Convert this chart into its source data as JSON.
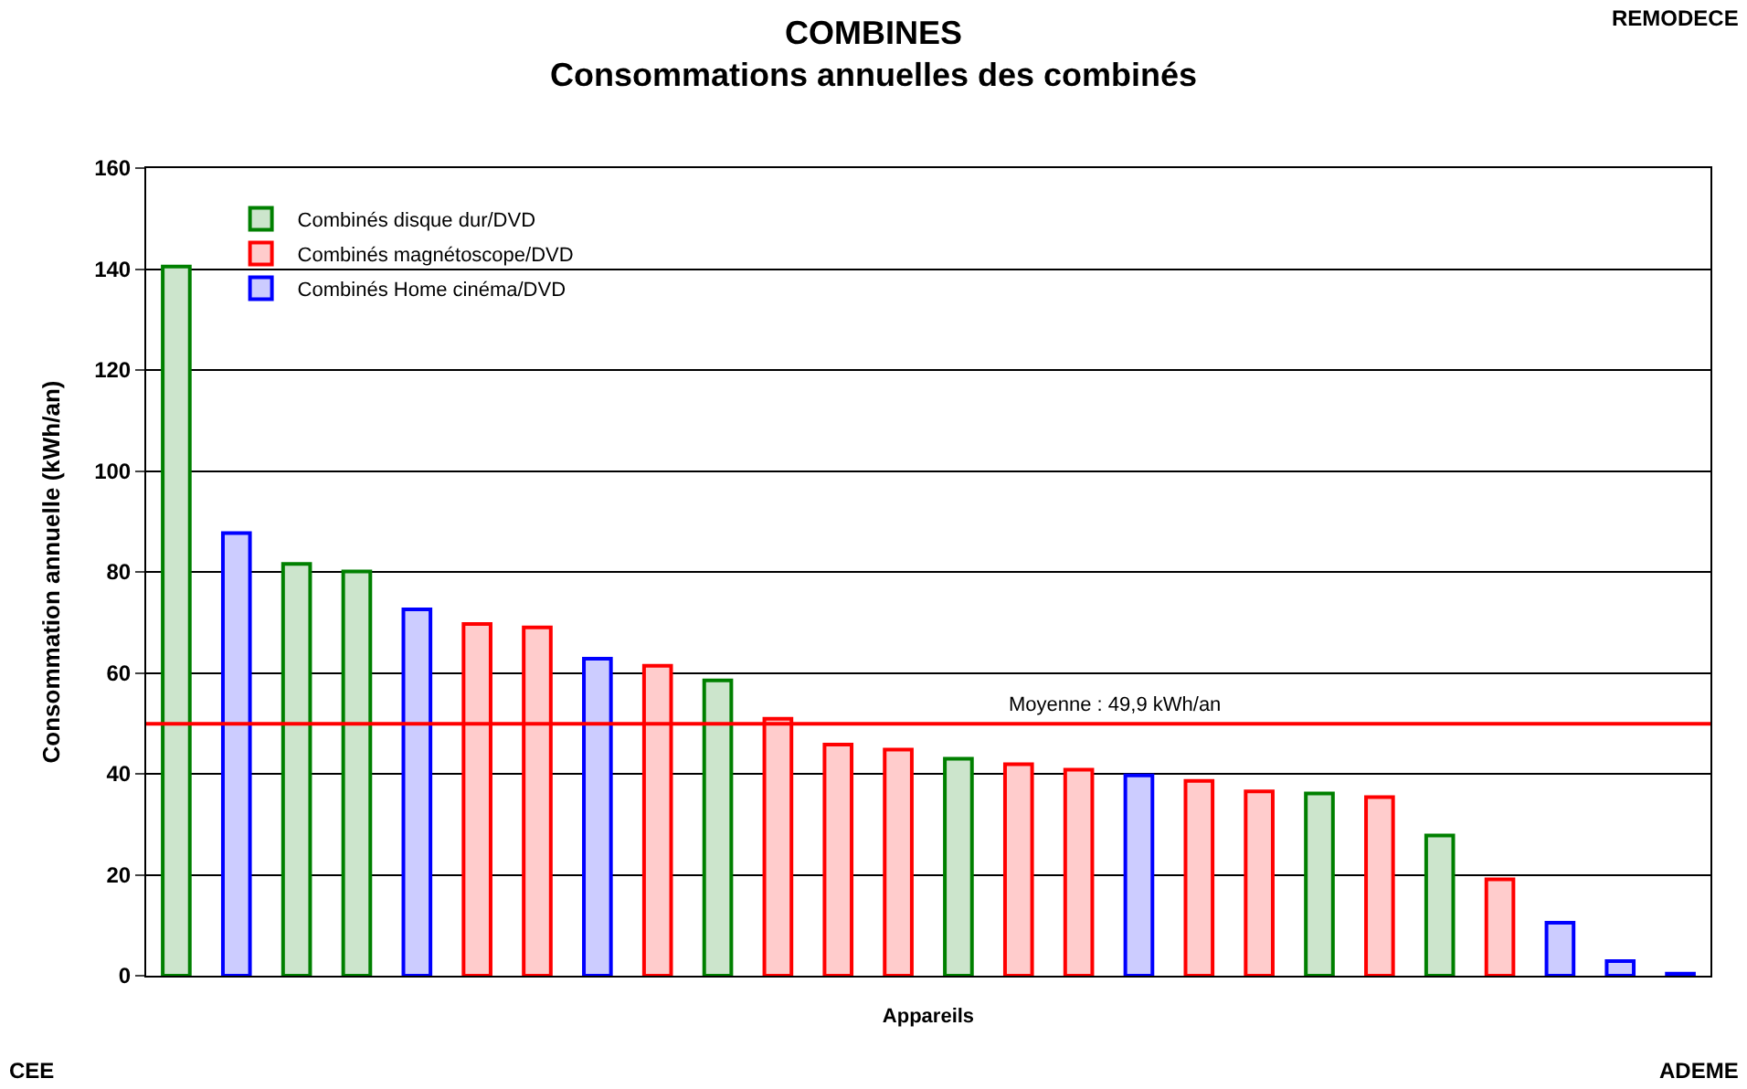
{
  "chart_data": {
    "type": "bar",
    "title": "COMBINES",
    "subtitle": "Consommations annuelles des combinés",
    "xlabel": "Appareils",
    "ylabel": "Consommation annuelle (kWh/an)",
    "categories": [
      null,
      null,
      null,
      null,
      null,
      null,
      null,
      null,
      null,
      null,
      null,
      null,
      null,
      null,
      null,
      null,
      null,
      null,
      null,
      null,
      null,
      null,
      null,
      null,
      null,
      null
    ],
    "series": [
      {
        "name": "Combinés disque dur/DVD",
        "color": "#008000",
        "values": [
          140.5,
          null,
          81.6,
          80.1,
          null,
          null,
          null,
          null,
          null,
          58.5,
          null,
          null,
          null,
          43,
          null,
          null,
          null,
          null,
          null,
          36.1,
          null,
          27.8,
          null,
          null,
          null,
          null
        ]
      },
      {
        "name": "Combinés magnétoscope/DVD",
        "color": "#ff0000",
        "values": [
          null,
          null,
          null,
          null,
          null,
          69.7,
          69,
          null,
          61.4,
          null,
          50.9,
          45.8,
          44.8,
          null,
          41.9,
          40.8,
          null,
          38.6,
          36.5,
          null,
          35.4,
          null,
          19.1,
          null,
          null,
          null
        ]
      },
      {
        "name": "Combinés Home cinéma/DVD",
        "color": "#0000ff",
        "values": [
          null,
          87.7,
          null,
          null,
          72.6,
          null,
          null,
          62.8,
          null,
          null,
          null,
          null,
          null,
          null,
          null,
          null,
          39.7,
          null,
          null,
          null,
          null,
          null,
          null,
          10.5,
          2.9,
          0.4
        ]
      }
    ],
    "ylim": [
      0,
      160
    ],
    "yticks": [
      0,
      20,
      40,
      60,
      80,
      100,
      120,
      140,
      160
    ],
    "grid": "y",
    "legend": "top left",
    "ref_lines": [
      {
        "axis": "y",
        "value": 49.9,
        "label": "Moyenne : 49,9 kWh/an",
        "color": "#ff0000"
      }
    ],
    "annotations": [
      "REMODECE",
      "CEE",
      "ADEME"
    ]
  }
}
